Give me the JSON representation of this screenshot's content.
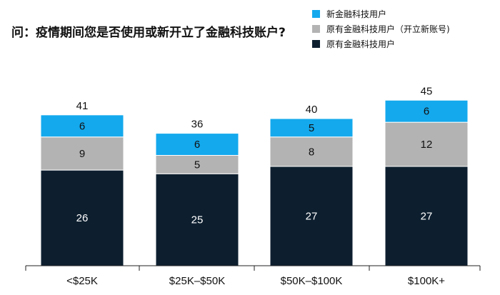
{
  "chart_data": {
    "type": "bar",
    "stacked": true,
    "title": "问：疫情期间您是否使用或新开立了金融科技账户?",
    "categories": [
      "<$25K",
      "$25K–$50K",
      "$50K–$100K",
      "$100K+"
    ],
    "series": [
      {
        "name": "原有金融科技用户",
        "values": [
          26,
          25,
          27,
          27
        ],
        "color": "#0d1f2f",
        "label_color": "#ffffff"
      },
      {
        "name": "原有金融科技用户（开立新账号)",
        "values": [
          9,
          5,
          8,
          12
        ],
        "color": "#b3b3b3",
        "label_color": "#111111"
      },
      {
        "name": "新金融科技用户",
        "values": [
          6,
          6,
          5,
          6
        ],
        "color": "#14a9ed",
        "label_color": "#111111"
      }
    ],
    "totals": [
      41,
      36,
      40,
      45
    ],
    "legend_order": [
      "新金融科技用户",
      "原有金融科技用户（开立新账号)",
      "原有金融科技用户"
    ],
    "legend_position": "top-right",
    "ylim": [
      0,
      46
    ],
    "grid": false,
    "xlabel": "",
    "ylabel": ""
  }
}
